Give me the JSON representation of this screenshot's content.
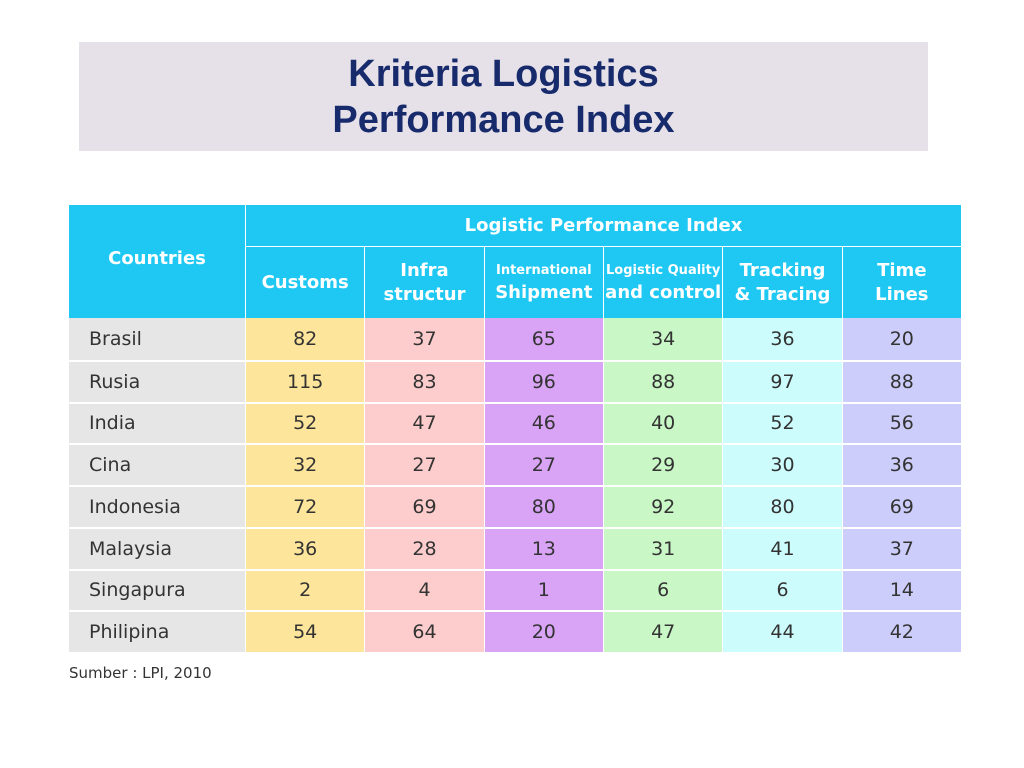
{
  "header": {
    "title": [
      "Kriteria Logistics",
      "Performance Index"
    ]
  },
  "table": {
    "corner": "Countries",
    "group": "Logistic Performance Index",
    "columns": [
      [
        "Customs"
      ],
      [
        "Infra",
        "structur"
      ],
      [
        "International",
        "Shipment"
      ],
      [
        "Logistic Quality",
        "and control"
      ],
      [
        "Tracking",
        "& Tracing"
      ],
      [
        "Time",
        "Lines"
      ]
    ],
    "rows": [
      [
        "Brasil",
        82,
        37,
        65,
        34,
        36,
        20
      ],
      [
        "Rusia",
        115,
        83,
        96,
        88,
        97,
        88
      ],
      [
        "India",
        52,
        47,
        46,
        40,
        52,
        56
      ],
      [
        "Cina",
        32,
        27,
        27,
        29,
        30,
        36
      ],
      [
        "Indonesia",
        72,
        69,
        80,
        92,
        80,
        69
      ],
      [
        "Malaysia",
        36,
        28,
        13,
        31,
        41,
        37
      ],
      [
        "Singapura",
        2,
        4,
        1,
        6,
        6,
        14
      ],
      [
        "Philipina",
        54,
        64,
        20,
        47,
        44,
        42
      ]
    ]
  },
  "source": "Sumber : LPI, 2010"
}
